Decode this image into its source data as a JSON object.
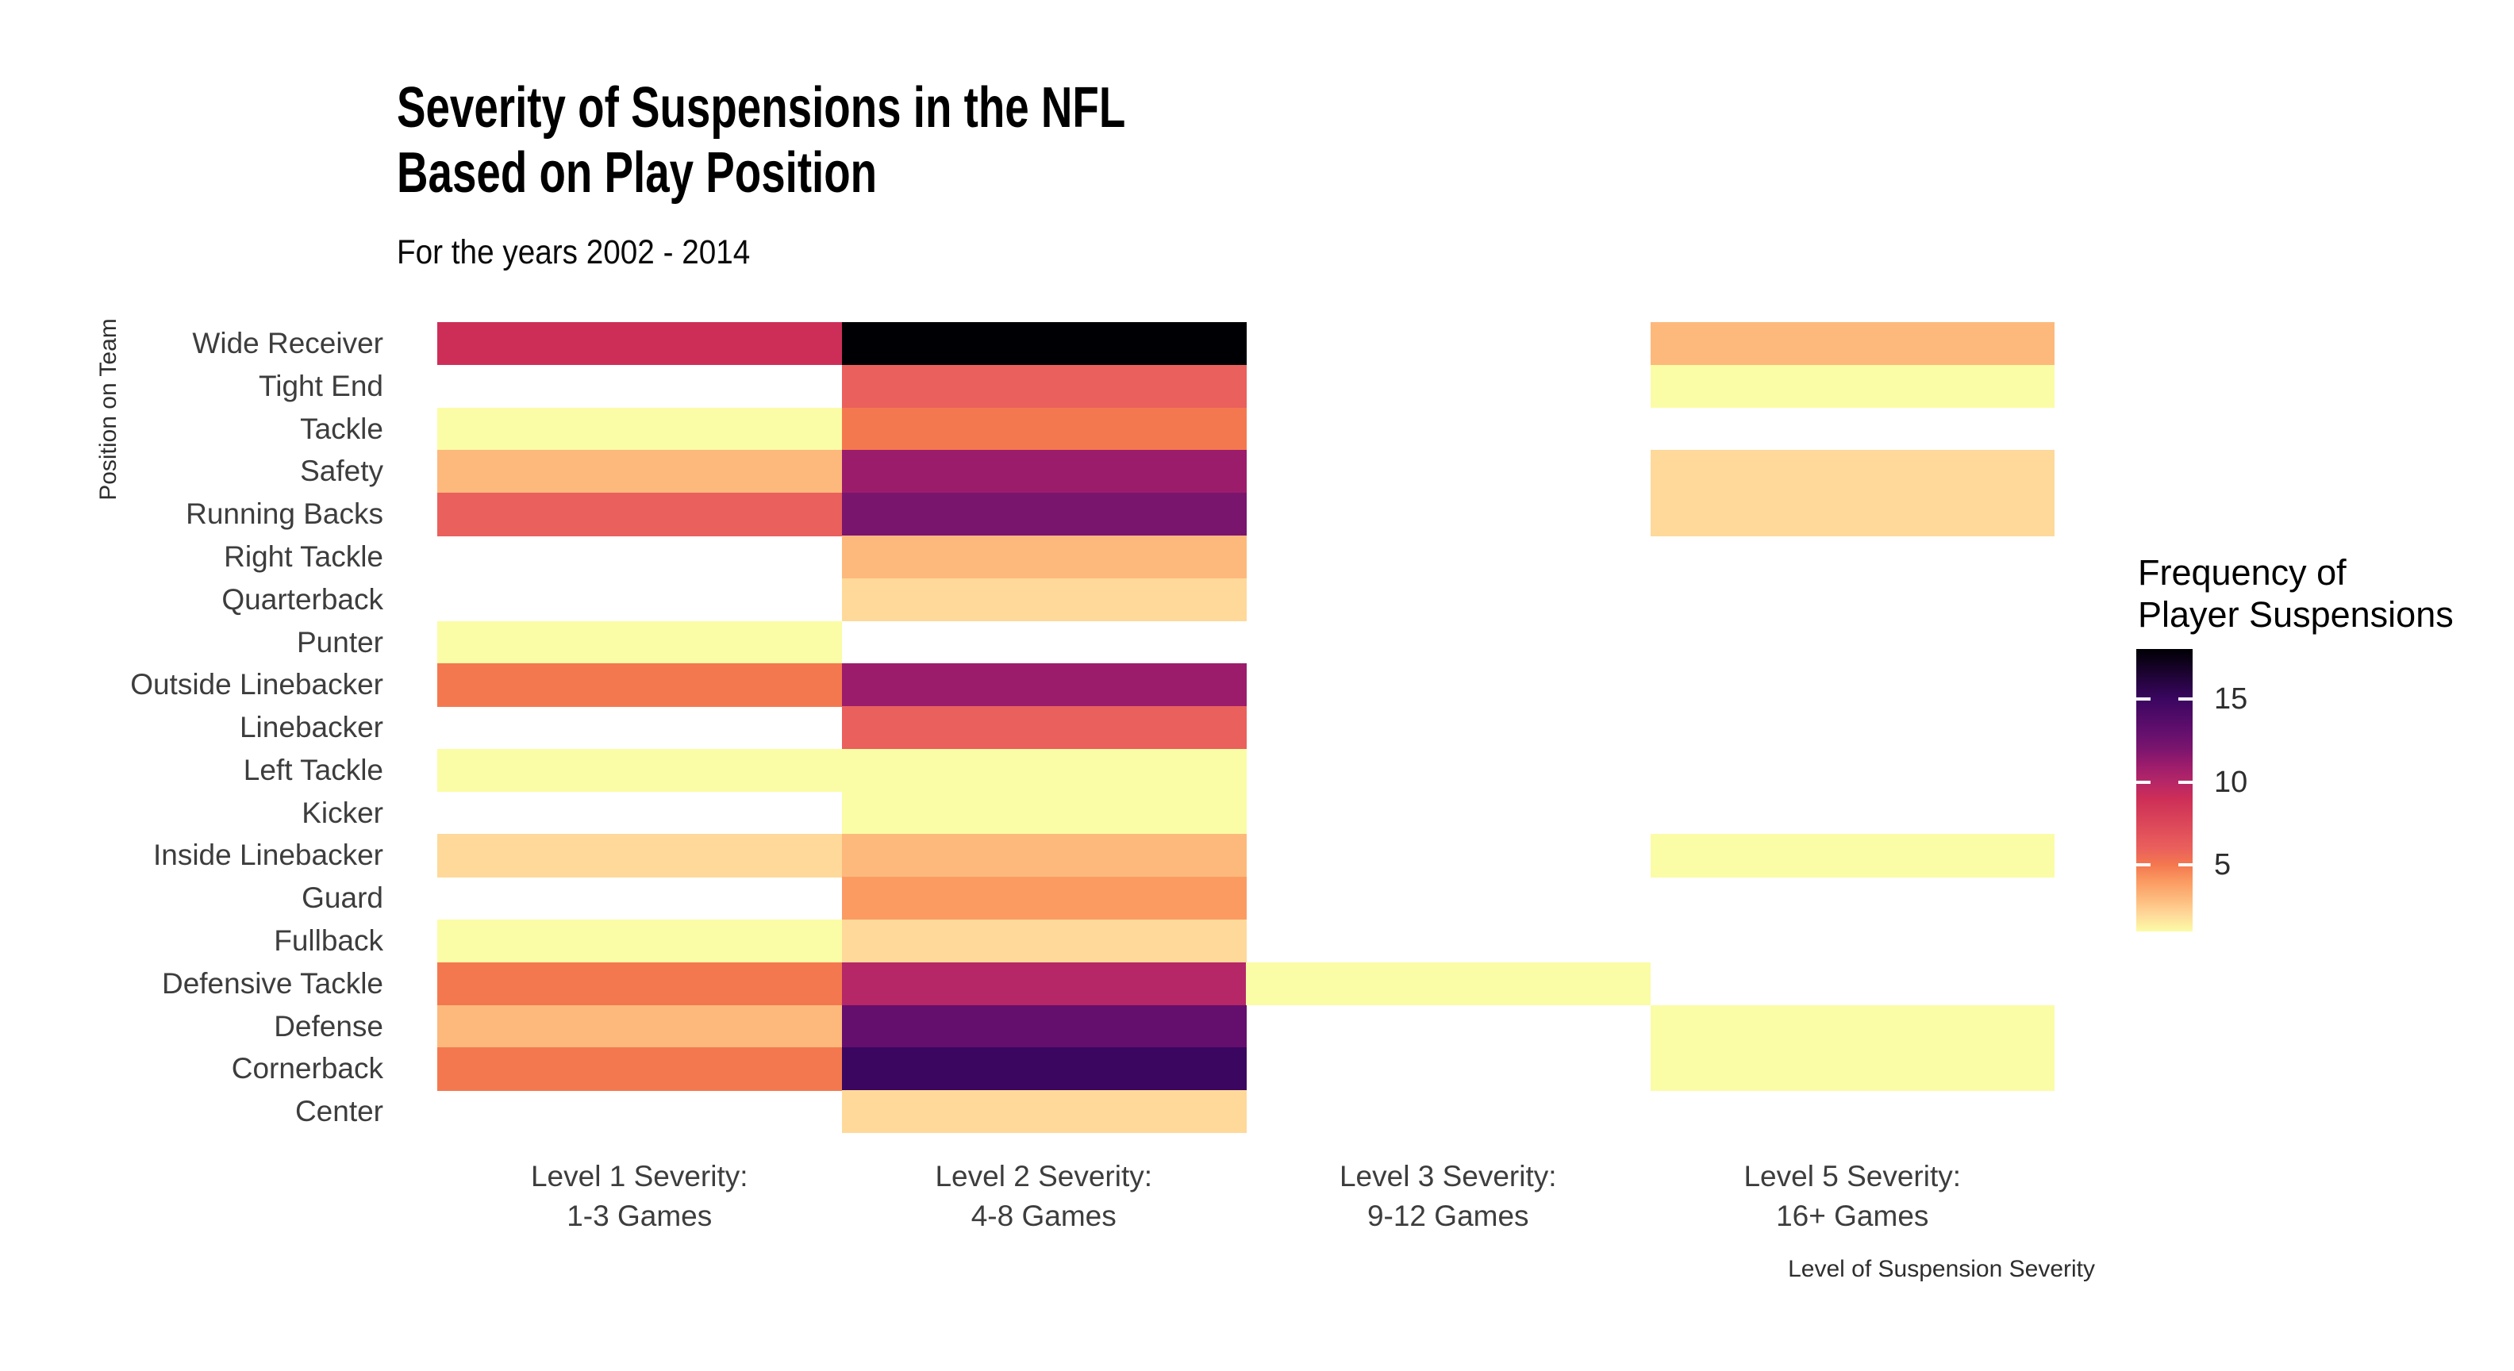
{
  "header": {
    "title_line1": "Severity of Suspensions in the NFL",
    "title_line2": "Based on Play Position",
    "subtitle": "For the years 2002 - 2014"
  },
  "axes": {
    "y_title": "Position on Team",
    "x_title": "Level of Suspension Severity"
  },
  "legend": {
    "title_line1": "Frequency of",
    "title_line2": "Player Suspensions",
    "tick_labels": [
      "15",
      "10",
      "5"
    ]
  },
  "chart_data": {
    "type": "heatmap",
    "title": "Severity of Suspensions in the NFL Based on Play Position",
    "subtitle": "For the years 2002 - 2014",
    "xlabel": "Level of Suspension Severity",
    "ylabel": "Position on Team",
    "x_categories": [
      [
        "Level 1 Severity:",
        "1-3 Games"
      ],
      [
        "Level 2 Severity:",
        "4-8 Games"
      ],
      [
        "Level 3 Severity:",
        "9-12 Games"
      ],
      [
        "Level 5 Severity:",
        "16+ Games"
      ]
    ],
    "y_categories": [
      "Wide Receiver",
      "Tight End",
      "Tackle",
      "Safety",
      "Running Backs",
      "Right Tackle",
      "Quarterback",
      "Punter",
      "Outside Linebacker",
      "Linebacker",
      "Left Tackle",
      "Kicker",
      "Inside Linebacker",
      "Guard",
      "Fullback",
      "Defensive Tackle",
      "Defense",
      "Cornerback",
      "Center"
    ],
    "values": [
      [
        9,
        18,
        null,
        3
      ],
      [
        null,
        6,
        null,
        1
      ],
      [
        1,
        5,
        null,
        null
      ],
      [
        3,
        11,
        null,
        2
      ],
      [
        6,
        12,
        null,
        2
      ],
      [
        null,
        3,
        null,
        null
      ],
      [
        null,
        2,
        null,
        null
      ],
      [
        1,
        null,
        null,
        null
      ],
      [
        5,
        11,
        null,
        null
      ],
      [
        null,
        6,
        null,
        null
      ],
      [
        1,
        1,
        null,
        null
      ],
      [
        null,
        1,
        null,
        null
      ],
      [
        2,
        3,
        null,
        1
      ],
      [
        null,
        4,
        null,
        null
      ],
      [
        1,
        2,
        null,
        null
      ],
      [
        5,
        10,
        1,
        null
      ],
      [
        3,
        13,
        null,
        1
      ],
      [
        5,
        15,
        null,
        1
      ],
      [
        null,
        2,
        null,
        null
      ]
    ],
    "missing_color": "#FFFFFF",
    "value_colors": {
      "1": "#FBFCA6",
      "2": "#FED99A",
      "3": "#FDB97C",
      "4": "#FB9B62",
      "5": "#F4784F",
      "6": "#EA605C",
      "9": "#CD2E57",
      "10": "#B52767",
      "11": "#9C1C6C",
      "12": "#7A156E",
      "13": "#640F6E",
      "15": "#3A0660",
      "18": "#000004"
    },
    "legend_title": "Frequency of Player Suspensions",
    "legend_ticks": [
      15,
      10,
      5
    ],
    "scale": {
      "min": 1,
      "max": 18,
      "colormap": "magma reversed (dark = high frequency)",
      "legend_position": "right"
    },
    "grid": "off",
    "background": "#FFFFFF"
  }
}
